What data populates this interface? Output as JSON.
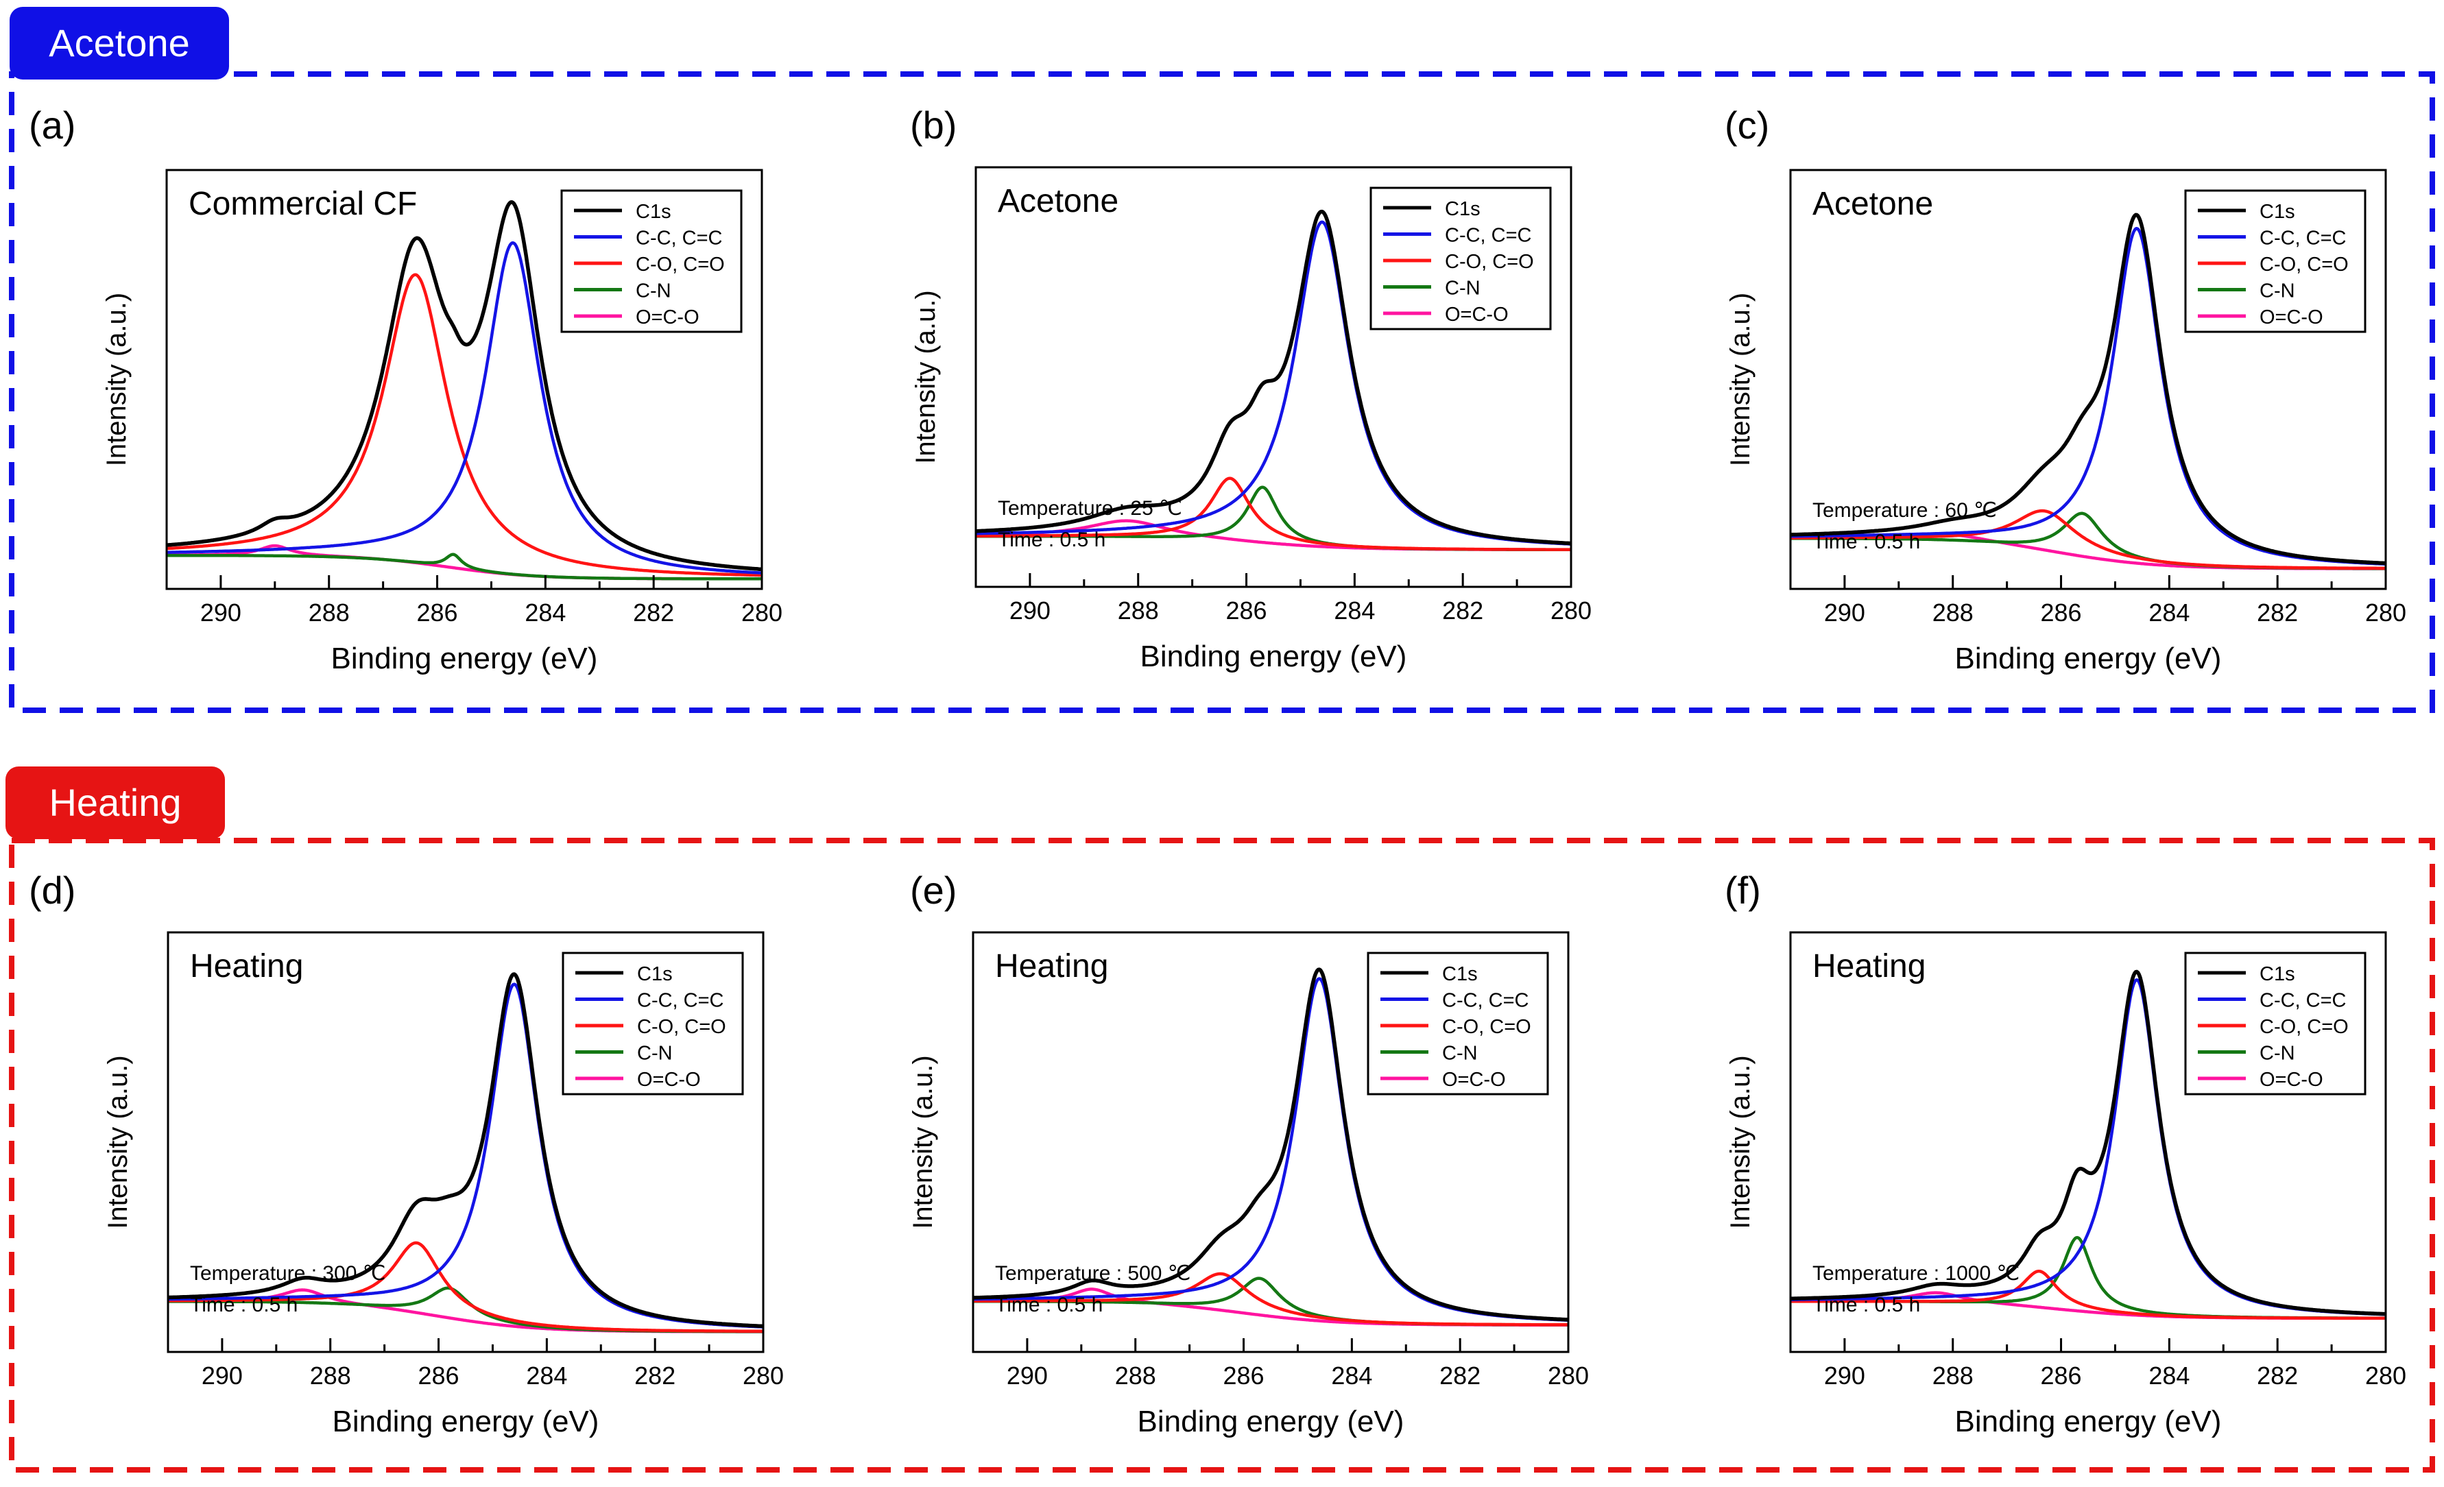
{
  "colors": {
    "acetone_group": "#1010e6",
    "heating_group": "#e61414",
    "C1s": "#000000",
    "C-C, C=C": "#1414e6",
    "C-O, C=O": "#ff1414",
    "C-N": "#147814",
    "O=C-O": "#ff14a0",
    "tab_text": "#ffffff"
  },
  "groups": [
    {
      "id": "acetone",
      "label": "Acetone"
    },
    {
      "id": "heating",
      "label": "Heating"
    }
  ],
  "chart_data": [
    {
      "panel": "(a)",
      "group": "acetone",
      "type": "line",
      "title": "Commercial CF",
      "annotations": [],
      "xlabel": "Binding energy (eV)",
      "ylabel": "Intensity (a.u.)",
      "xlim": [
        291,
        280
      ],
      "ylim": [
        -0.1,
        1.15
      ],
      "xticks": [
        290,
        288,
        286,
        284,
        282,
        280
      ],
      "yticks": [],
      "legend": [
        "C1s",
        "C-C, C=C",
        "C-O, C=O",
        "C-N",
        "O=C-O"
      ],
      "legend_position": "top-right",
      "baseline": {
        "left": 0.0,
        "right": -0.07,
        "center": 285.8,
        "width": 0.8
      },
      "components": [
        {
          "name": "C-C, C=C",
          "center": 284.6,
          "height": 0.99,
          "width": 0.62
        },
        {
          "name": "C-O, C=O",
          "center": 286.4,
          "height": 0.86,
          "width": 0.72
        },
        {
          "name": "C-N",
          "center": 285.7,
          "height": 0.04,
          "width": 0.18
        },
        {
          "name": "O=C-O",
          "center": 289.0,
          "height": 0.03,
          "width": 0.35
        }
      ]
    },
    {
      "panel": "(b)",
      "group": "acetone",
      "type": "line",
      "title": "Acetone",
      "annotations": [
        "Temperature : 25 ℃",
        "Time : 0.5 h"
      ],
      "xlabel": "Binding energy (eV)",
      "ylabel": "Intensity (a.u.)",
      "xlim": [
        291,
        280
      ],
      "ylim": [
        -0.15,
        1.1
      ],
      "xticks": [
        290,
        288,
        286,
        284,
        282,
        280
      ],
      "yticks": [],
      "legend": [
        "C1s",
        "C-C, C=C",
        "C-O, C=O",
        "C-N",
        "O=C-O"
      ],
      "legend_position": "top-right",
      "baseline": {
        "left": 0.0,
        "right": -0.04,
        "center": 286.0,
        "width": 0.9
      },
      "components": [
        {
          "name": "C-C, C=C",
          "center": 284.6,
          "height": 0.97,
          "width": 0.62
        },
        {
          "name": "C-O, C=O",
          "center": 286.3,
          "height": 0.19,
          "width": 0.45
        },
        {
          "name": "C-N",
          "center": 285.7,
          "height": 0.17,
          "width": 0.35
        },
        {
          "name": "O=C-O",
          "center": 288.2,
          "height": 0.05,
          "width": 0.9
        }
      ]
    },
    {
      "panel": "(c)",
      "group": "acetone",
      "type": "line",
      "title": "Acetone",
      "annotations": [
        "Temperature : 60 ℃",
        "Time : 0.5 h"
      ],
      "xlabel": "Binding energy (eV)",
      "ylabel": "Intensity (a.u.)",
      "xlim": [
        291,
        280
      ],
      "ylim": [
        -0.15,
        1.1
      ],
      "xticks": [
        290,
        288,
        286,
        284,
        282,
        280
      ],
      "yticks": [],
      "legend": [
        "C1s",
        "C-C, C=C",
        "C-O, C=O",
        "C-N",
        "O=C-O"
      ],
      "legend_position": "top-right",
      "baseline": {
        "left": 0.0,
        "right": -0.09,
        "center": 286.0,
        "width": 0.9
      },
      "components": [
        {
          "name": "C-C, C=C",
          "center": 284.6,
          "height": 1.0,
          "width": 0.55
        },
        {
          "name": "C-O, C=O",
          "center": 286.3,
          "height": 0.12,
          "width": 0.7
        },
        {
          "name": "C-N",
          "center": 285.6,
          "height": 0.13,
          "width": 0.45
        },
        {
          "name": "O=C-O",
          "center": 288.0,
          "height": 0.02,
          "width": 0.8
        }
      ]
    },
    {
      "panel": "(d)",
      "group": "heating",
      "type": "line",
      "title": "Heating",
      "annotations": [
        "Temperature : 300 ℃",
        "Time : 0.5 h"
      ],
      "xlabel": "Binding energy (eV)",
      "ylabel": "Intensity (a.u.)",
      "xlim": [
        291,
        280
      ],
      "ylim": [
        -0.15,
        1.1
      ],
      "xticks": [
        290,
        288,
        286,
        284,
        282,
        280
      ],
      "yticks": [],
      "legend": [
        "C1s",
        "C-C, C=C",
        "C-O, C=O",
        "C-N",
        "O=C-O"
      ],
      "legend_position": "top-right",
      "baseline": {
        "left": 0.0,
        "right": -0.09,
        "center": 286.0,
        "width": 0.9
      },
      "components": [
        {
          "name": "C-C, C=C",
          "center": 284.6,
          "height": 1.02,
          "width": 0.55
        },
        {
          "name": "C-O, C=O",
          "center": 286.4,
          "height": 0.21,
          "width": 0.55
        },
        {
          "name": "C-N",
          "center": 285.8,
          "height": 0.09,
          "width": 0.45
        },
        {
          "name": "O=C-O",
          "center": 288.5,
          "height": 0.04,
          "width": 0.5
        }
      ]
    },
    {
      "panel": "(e)",
      "group": "heating",
      "type": "line",
      "title": "Heating",
      "annotations": [
        "Temperature : 500 ℃",
        "Time : 0.5 h"
      ],
      "xlabel": "Binding energy (eV)",
      "ylabel": "Intensity (a.u.)",
      "xlim": [
        291,
        280
      ],
      "ylim": [
        -0.15,
        1.1
      ],
      "xticks": [
        290,
        288,
        286,
        284,
        282,
        280
      ],
      "yticks": [],
      "legend": [
        "C1s",
        "C-C, C=C",
        "C-O, C=O",
        "C-N",
        "O=C-O"
      ],
      "legend_position": "top-right",
      "baseline": {
        "left": 0.0,
        "right": -0.07,
        "center": 286.0,
        "width": 0.9
      },
      "components": [
        {
          "name": "C-C, C=C",
          "center": 284.6,
          "height": 1.02,
          "width": 0.55
        },
        {
          "name": "C-O, C=O",
          "center": 286.4,
          "height": 0.11,
          "width": 0.6
        },
        {
          "name": "C-N",
          "center": 285.7,
          "height": 0.11,
          "width": 0.45
        },
        {
          "name": "O=C-O",
          "center": 288.8,
          "height": 0.04,
          "width": 0.45
        }
      ]
    },
    {
      "panel": "(f)",
      "group": "heating",
      "type": "line",
      "title": "Heating",
      "annotations": [
        "Temperature : 1000 ℃",
        "Time : 0.5 h"
      ],
      "xlabel": "Binding energy (eV)",
      "ylabel": "Intensity (a.u.)",
      "xlim": [
        291,
        280
      ],
      "ylim": [
        -0.15,
        1.1
      ],
      "xticks": [
        290,
        288,
        286,
        284,
        282,
        280
      ],
      "yticks": [],
      "legend": [
        "C1s",
        "C-C, C=C",
        "C-O, C=O",
        "C-N",
        "O=C-O"
      ],
      "legend_position": "top-right",
      "baseline": {
        "left": 0.0,
        "right": -0.05,
        "center": 286.0,
        "width": 0.9
      },
      "components": [
        {
          "name": "C-C, C=C",
          "center": 284.6,
          "height": 1.0,
          "width": 0.5
        },
        {
          "name": "C-O, C=O",
          "center": 286.4,
          "height": 0.11,
          "width": 0.4
        },
        {
          "name": "C-N",
          "center": 285.7,
          "height": 0.22,
          "width": 0.33
        },
        {
          "name": "O=C-O",
          "center": 288.3,
          "height": 0.03,
          "width": 0.6
        }
      ]
    }
  ]
}
